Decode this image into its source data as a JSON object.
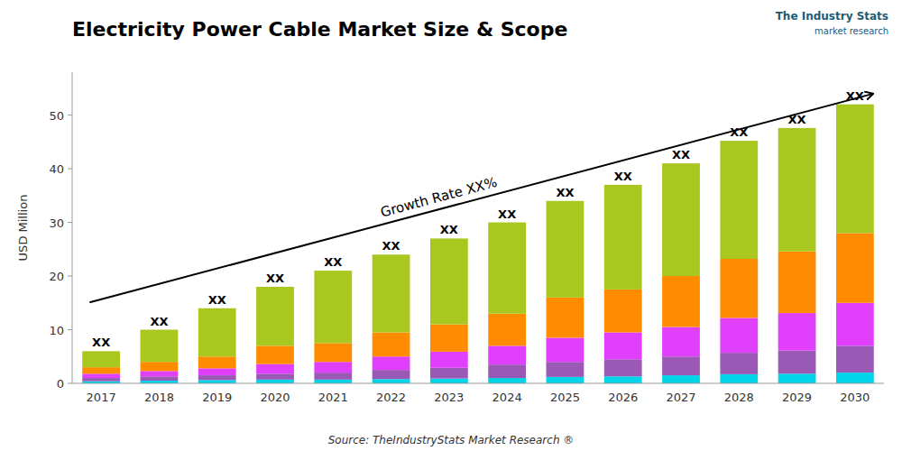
{
  "chart_data": {
    "type": "bar",
    "stacked": true,
    "title": "Electricity Power Cable Market Size & Scope",
    "y_label": "USD Million",
    "source": "Source: TheIndustryStats Market Research ®",
    "logo": [
      "The Industry Stats",
      "market research"
    ],
    "annotations": [
      "Growth Rate XX%"
    ],
    "bar_label": "XX",
    "categories": [
      "2017",
      "2018",
      "2019",
      "2020",
      "2021",
      "2022",
      "2023",
      "2024",
      "2025",
      "2026",
      "2027",
      "2028",
      "2029",
      "2030"
    ],
    "series": [
      {
        "color": "#00d4e8",
        "values": [
          0.4,
          0.5,
          0.6,
          0.7,
          0.7,
          0.8,
          0.9,
          1.0,
          1.2,
          1.3,
          1.5,
          1.7,
          1.8,
          2.0
        ]
      },
      {
        "color": "#9b59b6",
        "values": [
          0.6,
          0.8,
          0.9,
          1.1,
          1.3,
          1.7,
          2.0,
          2.5,
          2.8,
          3.2,
          3.5,
          4.0,
          4.3,
          5.0
        ]
      },
      {
        "color": "#e040fb",
        "values": [
          0.8,
          1.0,
          1.3,
          1.8,
          2.0,
          2.5,
          3.0,
          3.5,
          4.5,
          5.0,
          5.5,
          6.5,
          7.0,
          8.0
        ]
      },
      {
        "color": "#ff8c00",
        "values": [
          1.2,
          1.7,
          2.2,
          3.4,
          3.5,
          4.5,
          5.1,
          6.0,
          7.5,
          8.0,
          9.5,
          11.0,
          11.5,
          13.0
        ]
      },
      {
        "color": "#a8c820",
        "values": [
          3.0,
          6.0,
          9.0,
          11.0,
          13.5,
          14.5,
          16.0,
          17.0,
          18.0,
          19.5,
          21.0,
          22.0,
          23.0,
          24.0
        ]
      }
    ],
    "ylim": [
      0,
      58
    ],
    "yticks": [
      0,
      10,
      20,
      30,
      40,
      50
    ],
    "grid": false
  }
}
